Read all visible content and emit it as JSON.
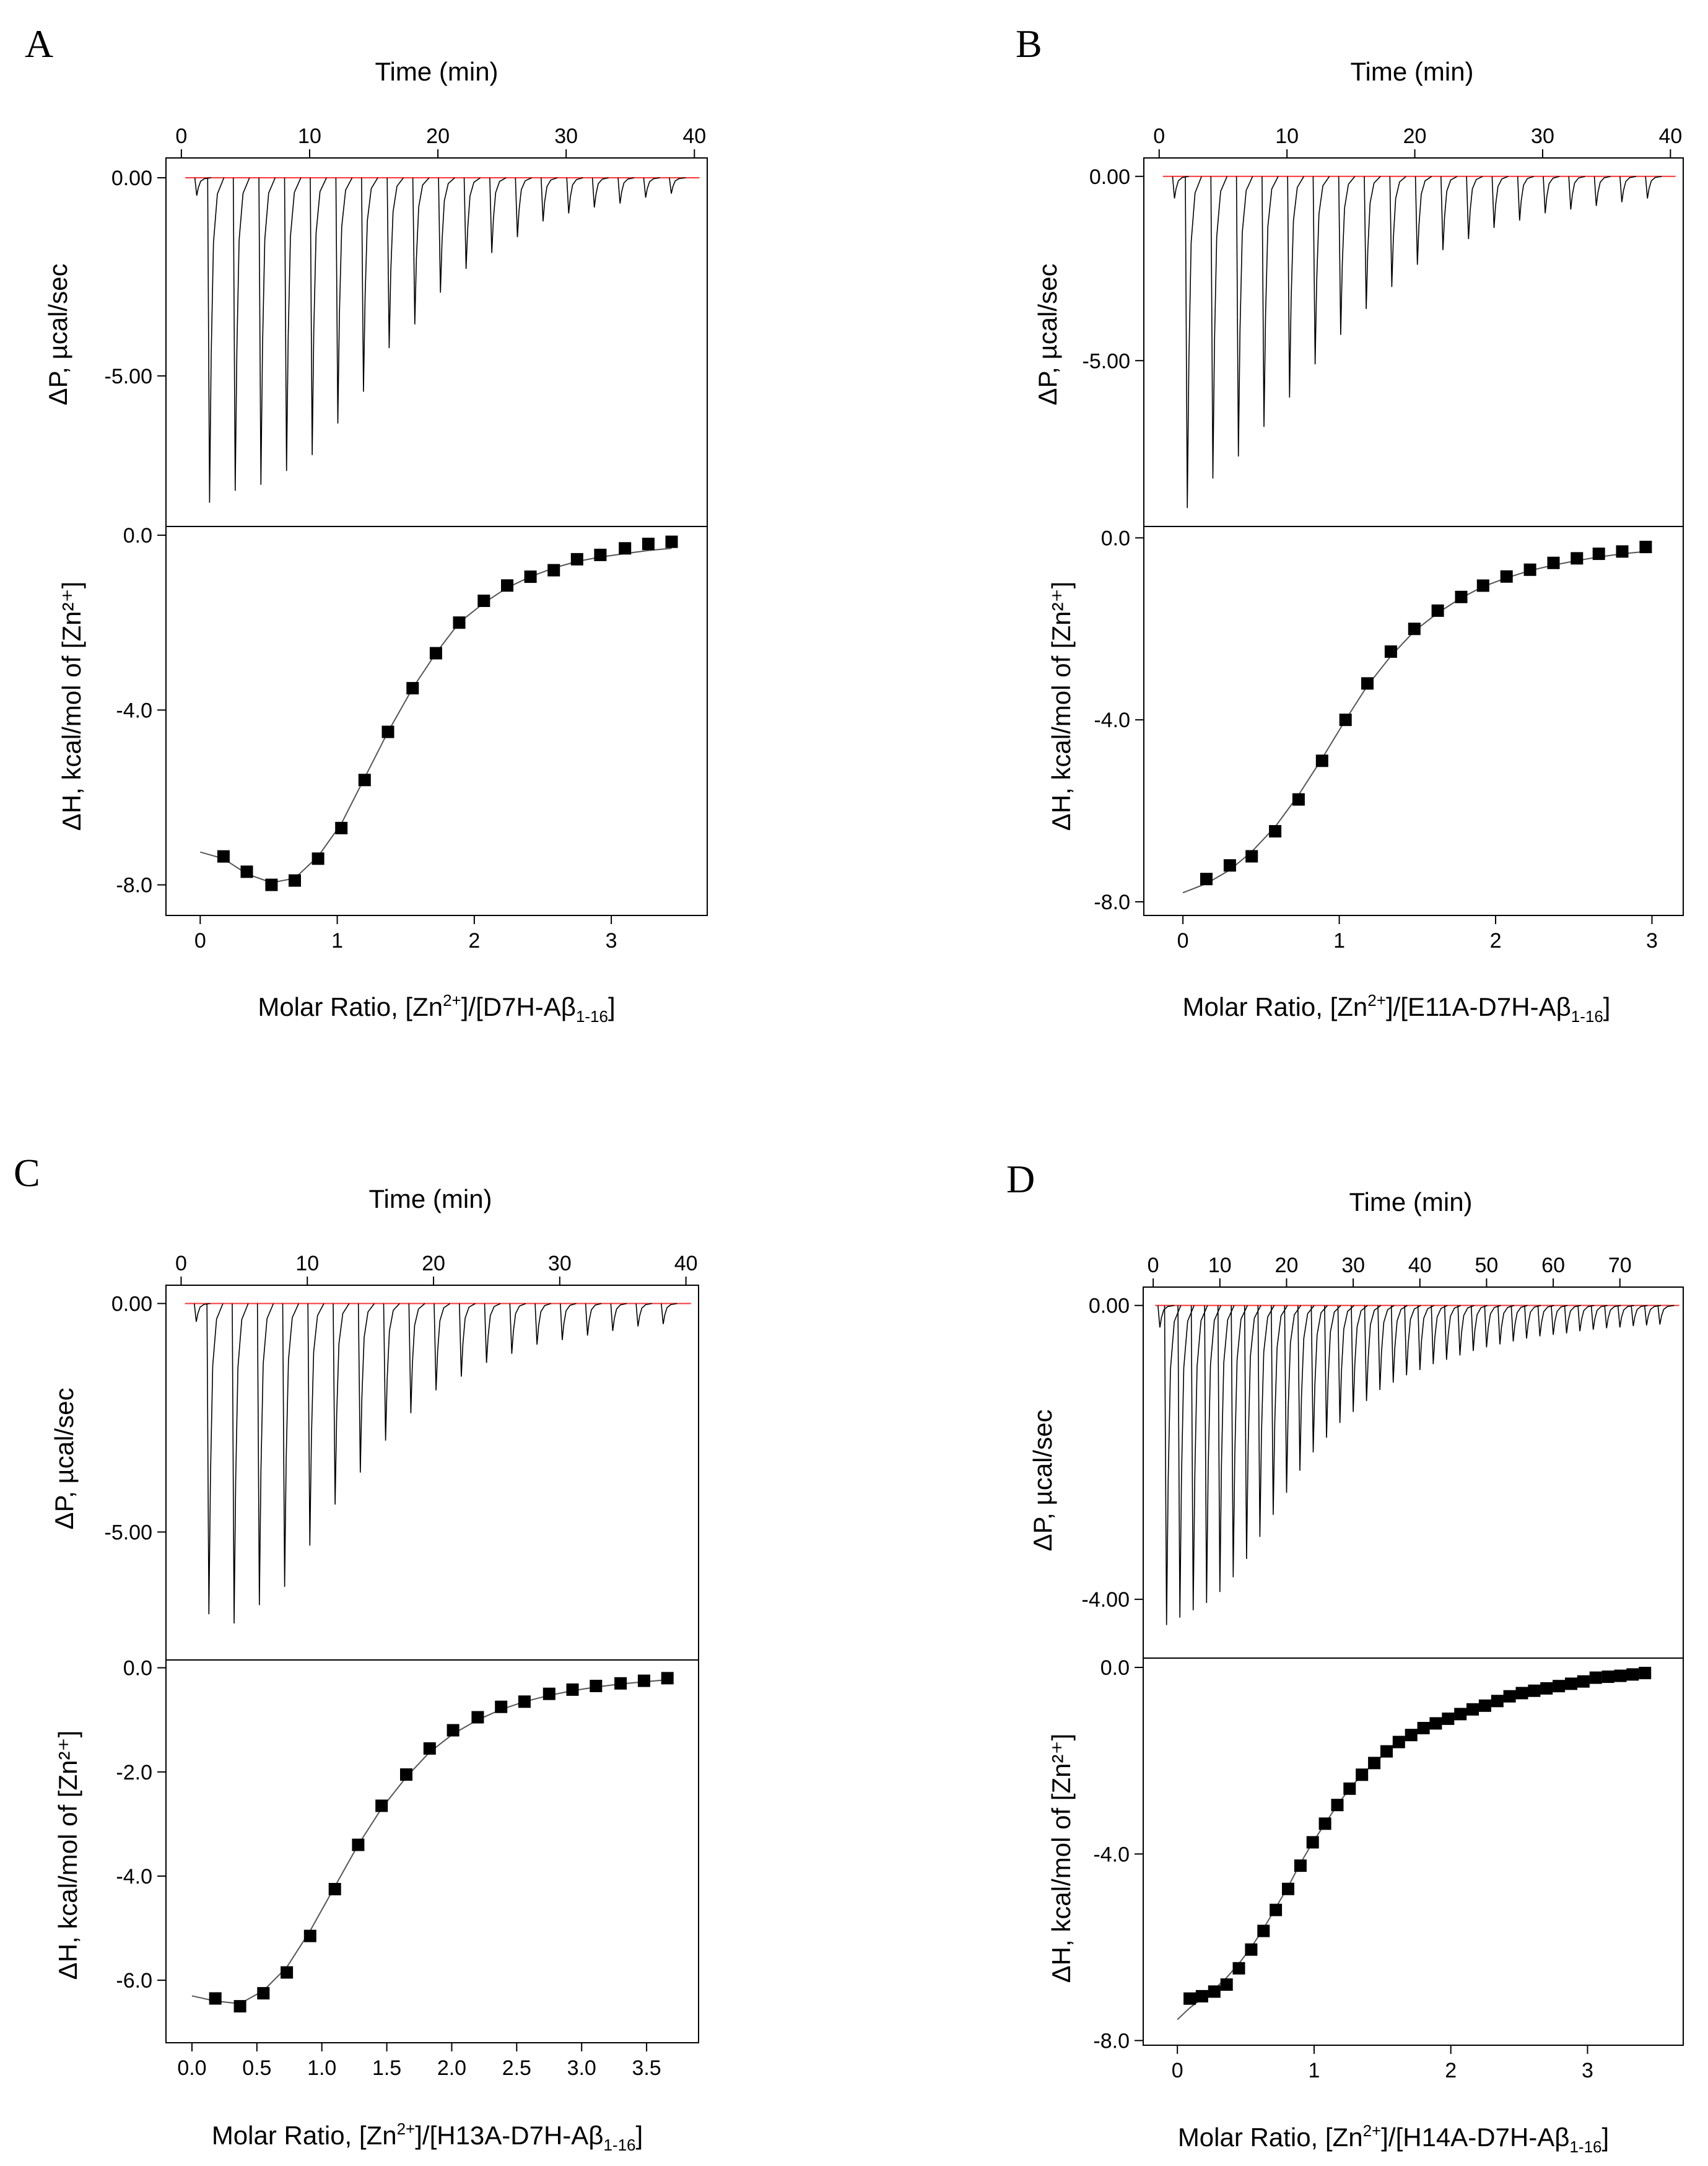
{
  "figure": {
    "panels": [
      {
        "letter": "A",
        "time_label": "Time (min)",
        "dp_label": "ΔP, µcal/sec",
        "dh_label": "ΔH, kcal/mol of [Zn²⁺]",
        "molar_label_pre": "Molar Ratio, [Zn",
        "molar_label_sup": "2+",
        "molar_label_mid": "]/[D7H-Aβ",
        "molar_label_sub": "1-16",
        "molar_label_post": "]"
      },
      {
        "letter": "B",
        "time_label": "Time (min)",
        "dp_label": "ΔP, µcal/sec",
        "dh_label": "ΔH, kcal/mol of [Zn²⁺]",
        "molar_label_pre": "Molar Ratio, [Zn",
        "molar_label_sup": "2+",
        "molar_label_mid": "]/[E11A-D7H-Aβ",
        "molar_label_sub": "1-16",
        "molar_label_post": "]"
      },
      {
        "letter": "C",
        "time_label": "Time (min)",
        "dp_label": "ΔP, µcal/sec",
        "dh_label": "ΔH, kcal/mol of [Zn²⁺]",
        "molar_label_pre": "Molar Ratio, [Zn",
        "molar_label_sup": "2+",
        "molar_label_mid": "]/[H13A-D7H-Aβ",
        "molar_label_sub": "1-16",
        "molar_label_post": "]"
      },
      {
        "letter": "D",
        "time_label": "Time (min)",
        "dp_label": "ΔP, µcal/sec",
        "dh_label": "ΔH, kcal/mol of [Zn²⁺]",
        "molar_label_pre": "Molar Ratio, [Zn",
        "molar_label_sup": "2+",
        "molar_label_mid": "]/[H14A-D7H-Aβ",
        "molar_label_sub": "1-16",
        "molar_label_post": "]"
      }
    ]
  },
  "colors": {
    "baseline": "#ff3333",
    "trace": "#000000",
    "points": "#000000",
    "fit": "#555555"
  },
  "chart_data": [
    {
      "panel": "A",
      "type": "scatter",
      "top": {
        "xlabel": "Time (min)",
        "ylabel": "ΔP, µcal/sec",
        "xlim": [
          -1.2,
          41
        ],
        "ylim": [
          -8.8,
          0.5
        ],
        "xticks": [
          0,
          10,
          20,
          30,
          40
        ],
        "xtick_labels": [
          "0",
          "10",
          "20",
          "30",
          "40"
        ],
        "yticks": [
          0,
          -5
        ],
        "ytick_labels": [
          "0.00",
          "-5.00"
        ],
        "injection_times": [
          1.2,
          2.2,
          4.2,
          6.2,
          8.2,
          10.2,
          12.2,
          14.2,
          16.2,
          18.2,
          20.2,
          22.2,
          24.2,
          26.2,
          28.2,
          30.2,
          32.2,
          34.2,
          36.2,
          38.2
        ],
        "peak_minima": [
          -0.45,
          -8.2,
          -7.9,
          -7.75,
          -7.4,
          -7.0,
          -6.2,
          -5.4,
          -4.3,
          -3.7,
          -2.9,
          -2.3,
          -1.9,
          -1.5,
          -1.1,
          -0.9,
          -0.75,
          -0.65,
          -0.5,
          -0.4
        ]
      },
      "bottom": {
        "xlabel": "Molar Ratio, [Zn2+]/[D7H-Aβ1-16]",
        "ylabel": "ΔH, kcal/mol of [Zn2+]",
        "xlim": [
          -0.25,
          3.7
        ],
        "ylim": [
          -8.7,
          0.2
        ],
        "xticks": [
          0,
          1,
          2,
          3
        ],
        "xtick_labels": [
          "0",
          "1",
          "2",
          "3"
        ],
        "yticks": [
          0,
          -4,
          -8
        ],
        "ytick_labels": [
          "0.0",
          "-4.0",
          "-8.0"
        ],
        "x": [
          0.17,
          0.34,
          0.52,
          0.69,
          0.86,
          1.03,
          1.2,
          1.37,
          1.55,
          1.72,
          1.89,
          2.07,
          2.24,
          2.41,
          2.58,
          2.75,
          2.92,
          3.1,
          3.27,
          3.44
        ],
        "y": [
          -7.35,
          -7.7,
          -8.0,
          -7.9,
          -7.4,
          -6.7,
          -5.6,
          -4.5,
          -3.5,
          -2.7,
          -2.0,
          -1.5,
          -1.15,
          -0.95,
          -0.8,
          -0.55,
          -0.45,
          -0.3,
          -0.2,
          -0.15
        ],
        "fit_x": [
          0.0,
          0.17,
          0.34,
          0.52,
          0.69,
          0.86,
          1.03,
          1.2,
          1.37,
          1.55,
          1.72,
          1.89,
          2.07,
          2.24,
          2.41,
          2.58,
          2.75,
          2.92,
          3.1,
          3.27,
          3.44
        ],
        "fit_y": [
          -7.25,
          -7.4,
          -7.75,
          -7.95,
          -7.85,
          -7.35,
          -6.6,
          -5.55,
          -4.5,
          -3.5,
          -2.7,
          -2.0,
          -1.55,
          -1.2,
          -0.95,
          -0.75,
          -0.6,
          -0.5,
          -0.42,
          -0.35,
          -0.3
        ]
      }
    },
    {
      "panel": "B",
      "type": "scatter",
      "top": {
        "xlabel": "Time (min)",
        "ylabel": "ΔP, µcal/sec",
        "xlim": [
          -1.2,
          41
        ],
        "ylim": [
          -9.5,
          0.5
        ],
        "xticks": [
          0,
          10,
          20,
          30,
          40
        ],
        "xtick_labels": [
          "0",
          "10",
          "20",
          "30",
          "40"
        ],
        "yticks": [
          0,
          -5
        ],
        "ytick_labels": [
          "0.00",
          "-5.00"
        ],
        "injection_times": [
          1.2,
          2.2,
          4.2,
          6.2,
          8.2,
          10.2,
          12.2,
          14.2,
          16.2,
          18.2,
          20.2,
          22.2,
          24.2,
          26.2,
          28.2,
          30.2,
          32.2,
          34.2,
          36.2,
          38.2
        ],
        "peak_minima": [
          -0.6,
          -9.0,
          -8.2,
          -7.6,
          -6.8,
          -6.0,
          -5.1,
          -4.3,
          -3.6,
          -3.0,
          -2.4,
          -2.0,
          -1.7,
          -1.4,
          -1.2,
          -1.0,
          -0.9,
          -0.8,
          -0.7,
          -0.6
        ]
      },
      "bottom": {
        "xlabel": "Molar Ratio, [Zn2+]/[E11A-D7H-Aβ1-16]",
        "ylabel": "ΔH, kcal/mol of [Zn2+]",
        "xlim": [
          -0.25,
          3.2
        ],
        "ylim": [
          -8.3,
          0.25
        ],
        "xticks": [
          0,
          1,
          2,
          3
        ],
        "xtick_labels": [
          "0",
          "1",
          "2",
          "3"
        ],
        "yticks": [
          0,
          -4,
          -8
        ],
        "ytick_labels": [
          "0.0",
          "-4.0",
          "-8.0"
        ],
        "x": [
          0.15,
          0.3,
          0.44,
          0.59,
          0.74,
          0.89,
          1.04,
          1.18,
          1.33,
          1.48,
          1.63,
          1.78,
          1.92,
          2.07,
          2.22,
          2.37,
          2.52,
          2.66,
          2.81,
          2.96
        ],
        "y": [
          -7.5,
          -7.2,
          -7.0,
          -6.45,
          -5.75,
          -4.9,
          -4.0,
          -3.2,
          -2.5,
          -2.0,
          -1.6,
          -1.3,
          -1.05,
          -0.85,
          -0.7,
          -0.55,
          -0.45,
          -0.35,
          -0.3,
          -0.2
        ],
        "fit_x": [
          0.0,
          0.15,
          0.3,
          0.44,
          0.59,
          0.74,
          0.89,
          1.04,
          1.18,
          1.33,
          1.48,
          1.63,
          1.78,
          1.92,
          2.07,
          2.22,
          2.37,
          2.52,
          2.66,
          2.81,
          2.96
        ],
        "fit_y": [
          -7.8,
          -7.6,
          -7.3,
          -6.9,
          -6.35,
          -5.65,
          -4.85,
          -4.0,
          -3.25,
          -2.6,
          -2.05,
          -1.65,
          -1.32,
          -1.07,
          -0.88,
          -0.72,
          -0.6,
          -0.5,
          -0.42,
          -0.35,
          -0.3
        ]
      }
    },
    {
      "panel": "C",
      "type": "scatter",
      "top": {
        "xlabel": "Time (min)",
        "ylabel": "ΔP, µcal/sec",
        "xlim": [
          -1.2,
          41
        ],
        "ylim": [
          -7.8,
          0.4
        ],
        "xticks": [
          0,
          10,
          20,
          30,
          40
        ],
        "xtick_labels": [
          "0",
          "10",
          "20",
          "30",
          "40"
        ],
        "yticks": [
          0,
          -5
        ],
        "ytick_labels": [
          "0.00",
          "-5.00"
        ],
        "injection_times": [
          1.2,
          2.2,
          4.2,
          6.2,
          8.2,
          10.2,
          12.2,
          14.2,
          16.2,
          18.2,
          20.2,
          22.2,
          24.2,
          26.2,
          28.2,
          30.2,
          32.2,
          34.2,
          36.2,
          38.2
        ],
        "peak_minima": [
          -0.4,
          -6.8,
          -7.0,
          -6.6,
          -6.2,
          -5.3,
          -4.4,
          -3.7,
          -3.0,
          -2.4,
          -1.9,
          -1.6,
          -1.3,
          -1.1,
          -0.9,
          -0.8,
          -0.7,
          -0.6,
          -0.5,
          -0.45
        ]
      },
      "bottom": {
        "xlabel": "Molar Ratio, [Zn2+]/[H13A-D7H-Aβ1-16]",
        "ylabel": "ΔH, kcal/mol of [Zn2+]",
        "xlim": [
          -0.2,
          3.9
        ],
        "ylim": [
          -7.2,
          0.15
        ],
        "xticks": [
          0.0,
          0.5,
          1.0,
          1.5,
          2.0,
          2.5,
          3.0,
          3.5
        ],
        "xtick_labels": [
          "0.0",
          "0.5",
          "1.0",
          "1.5",
          "2.0",
          "2.5",
          "3.0",
          "3.5"
        ],
        "yticks": [
          0,
          -2,
          -4,
          -6
        ],
        "ytick_labels": [
          "0.0",
          "-2.0",
          "-4.0",
          "-6.0"
        ],
        "x": [
          0.18,
          0.37,
          0.55,
          0.73,
          0.91,
          1.1,
          1.28,
          1.46,
          1.65,
          1.83,
          2.01,
          2.2,
          2.38,
          2.56,
          2.75,
          2.93,
          3.11,
          3.3,
          3.48,
          3.66
        ],
        "y": [
          -6.35,
          -6.5,
          -6.25,
          -5.85,
          -5.15,
          -4.25,
          -3.4,
          -2.65,
          -2.05,
          -1.55,
          -1.2,
          -0.95,
          -0.75,
          -0.65,
          -0.5,
          -0.42,
          -0.35,
          -0.3,
          -0.25,
          -0.2
        ],
        "fit_x": [
          0.0,
          0.18,
          0.37,
          0.55,
          0.73,
          0.91,
          1.1,
          1.28,
          1.46,
          1.65,
          1.83,
          2.01,
          2.2,
          2.38,
          2.56,
          2.75,
          2.93,
          3.11,
          3.3,
          3.48,
          3.66
        ],
        "fit_y": [
          -6.3,
          -6.4,
          -6.45,
          -6.2,
          -5.75,
          -5.05,
          -4.2,
          -3.4,
          -2.7,
          -2.1,
          -1.62,
          -1.27,
          -1.0,
          -0.8,
          -0.65,
          -0.53,
          -0.44,
          -0.37,
          -0.31,
          -0.27,
          -0.23
        ]
      }
    },
    {
      "panel": "D",
      "type": "scatter",
      "top": {
        "xlabel": "Time (min)",
        "ylabel": "ΔP, µcal/sec",
        "xlim": [
          -1.5,
          79.5
        ],
        "ylim": [
          -4.8,
          0.25
        ],
        "xticks": [
          0,
          10,
          20,
          30,
          40,
          50,
          60,
          70
        ],
        "xtick_labels": [
          "0",
          "10",
          "20",
          "30",
          "40",
          "50",
          "60",
          "70"
        ],
        "yticks": [
          0,
          -4
        ],
        "ytick_labels": [
          "0.00",
          "-4.00"
        ],
        "injection_times": [
          1.0,
          2.0,
          4.0,
          6.0,
          8.0,
          10.0,
          12.0,
          14.0,
          16.0,
          18.0,
          20.0,
          22.0,
          24.0,
          26.0,
          28.0,
          30.0,
          32.0,
          34.0,
          36.0,
          38.0,
          40.0,
          42.0,
          44.0,
          46.0,
          48.0,
          50.0,
          52.0,
          54.0,
          56.0,
          58.0,
          60.0,
          62.0,
          64.0,
          66.0,
          68.0,
          70.0,
          72.0,
          74.0,
          76.0
        ],
        "peak_minima": [
          -0.3,
          -4.35,
          -4.25,
          -4.15,
          -4.05,
          -3.9,
          -3.7,
          -3.45,
          -3.15,
          -2.85,
          -2.55,
          -2.25,
          -2.0,
          -1.8,
          -1.6,
          -1.45,
          -1.3,
          -1.15,
          -1.05,
          -0.95,
          -0.88,
          -0.8,
          -0.74,
          -0.68,
          -0.62,
          -0.57,
          -0.53,
          -0.49,
          -0.45,
          -0.42,
          -0.4,
          -0.38,
          -0.35,
          -0.33,
          -0.31,
          -0.3,
          -0.28,
          -0.27,
          -0.26
        ]
      },
      "bottom": {
        "xlabel": "Molar Ratio, [Zn2+]/[H14A-D7H-Aβ1-16]",
        "ylabel": "ΔH, kcal/mol of [Zn2+]",
        "xlim": [
          -0.25,
          3.7
        ],
        "ylim": [
          -8.1,
          0.2
        ],
        "xticks": [
          0,
          1,
          2,
          3
        ],
        "xtick_labels": [
          "0",
          "1",
          "2",
          "3"
        ],
        "yticks": [
          0,
          -4,
          -8
        ],
        "ytick_labels": [
          "0.0",
          "-4.0",
          "-8.0"
        ],
        "x": [
          0.09,
          0.18,
          0.27,
          0.36,
          0.45,
          0.54,
          0.63,
          0.72,
          0.81,
          0.9,
          0.99,
          1.08,
          1.17,
          1.26,
          1.35,
          1.44,
          1.53,
          1.62,
          1.71,
          1.8,
          1.89,
          1.98,
          2.07,
          2.16,
          2.25,
          2.34,
          2.43,
          2.52,
          2.61,
          2.7,
          2.79,
          2.88,
          2.97,
          3.06,
          3.15,
          3.24,
          3.33,
          3.42
        ],
        "y": [
          -7.1,
          -7.05,
          -6.95,
          -6.8,
          -6.45,
          -6.05,
          -5.65,
          -5.2,
          -4.75,
          -4.25,
          -3.75,
          -3.35,
          -2.95,
          -2.6,
          -2.3,
          -2.05,
          -1.8,
          -1.6,
          -1.45,
          -1.3,
          -1.2,
          -1.1,
          -1.0,
          -0.9,
          -0.82,
          -0.72,
          -0.62,
          -0.55,
          -0.5,
          -0.45,
          -0.4,
          -0.35,
          -0.3,
          -0.22,
          -0.2,
          -0.18,
          -0.15,
          -0.12
        ],
        "fit_x": [
          0.0,
          0.09,
          0.18,
          0.27,
          0.36,
          0.45,
          0.54,
          0.63,
          0.72,
          0.81,
          0.9,
          0.99,
          1.08,
          1.17,
          1.26,
          1.35,
          1.44,
          1.53,
          1.62,
          1.71,
          1.8,
          1.89,
          1.98,
          2.07,
          2.16,
          2.25,
          2.34,
          2.43,
          2.52,
          2.61,
          2.7,
          2.79,
          2.88,
          2.97,
          3.06,
          3.15,
          3.24,
          3.33,
          3.42
        ],
        "fit_y": [
          -7.55,
          -7.3,
          -7.1,
          -6.9,
          -6.65,
          -6.35,
          -6.0,
          -5.6,
          -5.15,
          -4.7,
          -4.2,
          -3.75,
          -3.35,
          -2.95,
          -2.6,
          -2.3,
          -2.05,
          -1.82,
          -1.62,
          -1.46,
          -1.32,
          -1.2,
          -1.09,
          -1.0,
          -0.91,
          -0.83,
          -0.75,
          -0.68,
          -0.62,
          -0.56,
          -0.5,
          -0.45,
          -0.4,
          -0.36,
          -0.32,
          -0.28,
          -0.25,
          -0.22,
          -0.2
        ]
      }
    }
  ]
}
